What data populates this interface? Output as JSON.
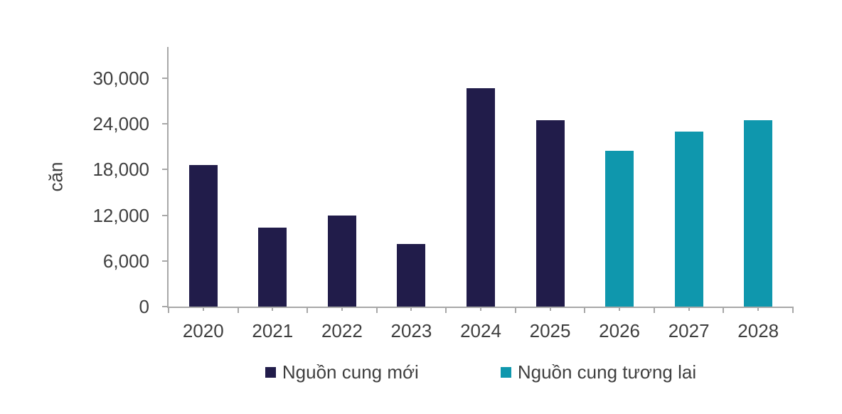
{
  "chart_data": {
    "type": "bar",
    "title": "",
    "xlabel": "",
    "ylabel": "căn",
    "categories": [
      "2020",
      "2021",
      "2022",
      "2023",
      "2024",
      "2025",
      "2026",
      "2027",
      "2028"
    ],
    "series": [
      {
        "name": "Nguồn cung mới",
        "color": "#211c4a",
        "values": [
          18600,
          10400,
          12000,
          8200,
          28700,
          24500,
          null,
          null,
          null
        ]
      },
      {
        "name": "Nguồn cung tương lai",
        "color": "#0f97ad",
        "values": [
          null,
          null,
          null,
          null,
          null,
          null,
          20500,
          23000,
          24500
        ]
      }
    ],
    "ylim": [
      0,
      34100
    ],
    "yticks": [
      0,
      6000,
      12000,
      18000,
      24000,
      30000
    ],
    "ytick_labels": [
      "0",
      "6,000",
      "12,000",
      "18,000",
      "24,000",
      "30,000"
    ],
    "grid": false,
    "legend_position": "bottom"
  },
  "style": {
    "axis_color": "#a8a8a8",
    "text_color": "#3f3f3f",
    "background": "#ffffff"
  }
}
